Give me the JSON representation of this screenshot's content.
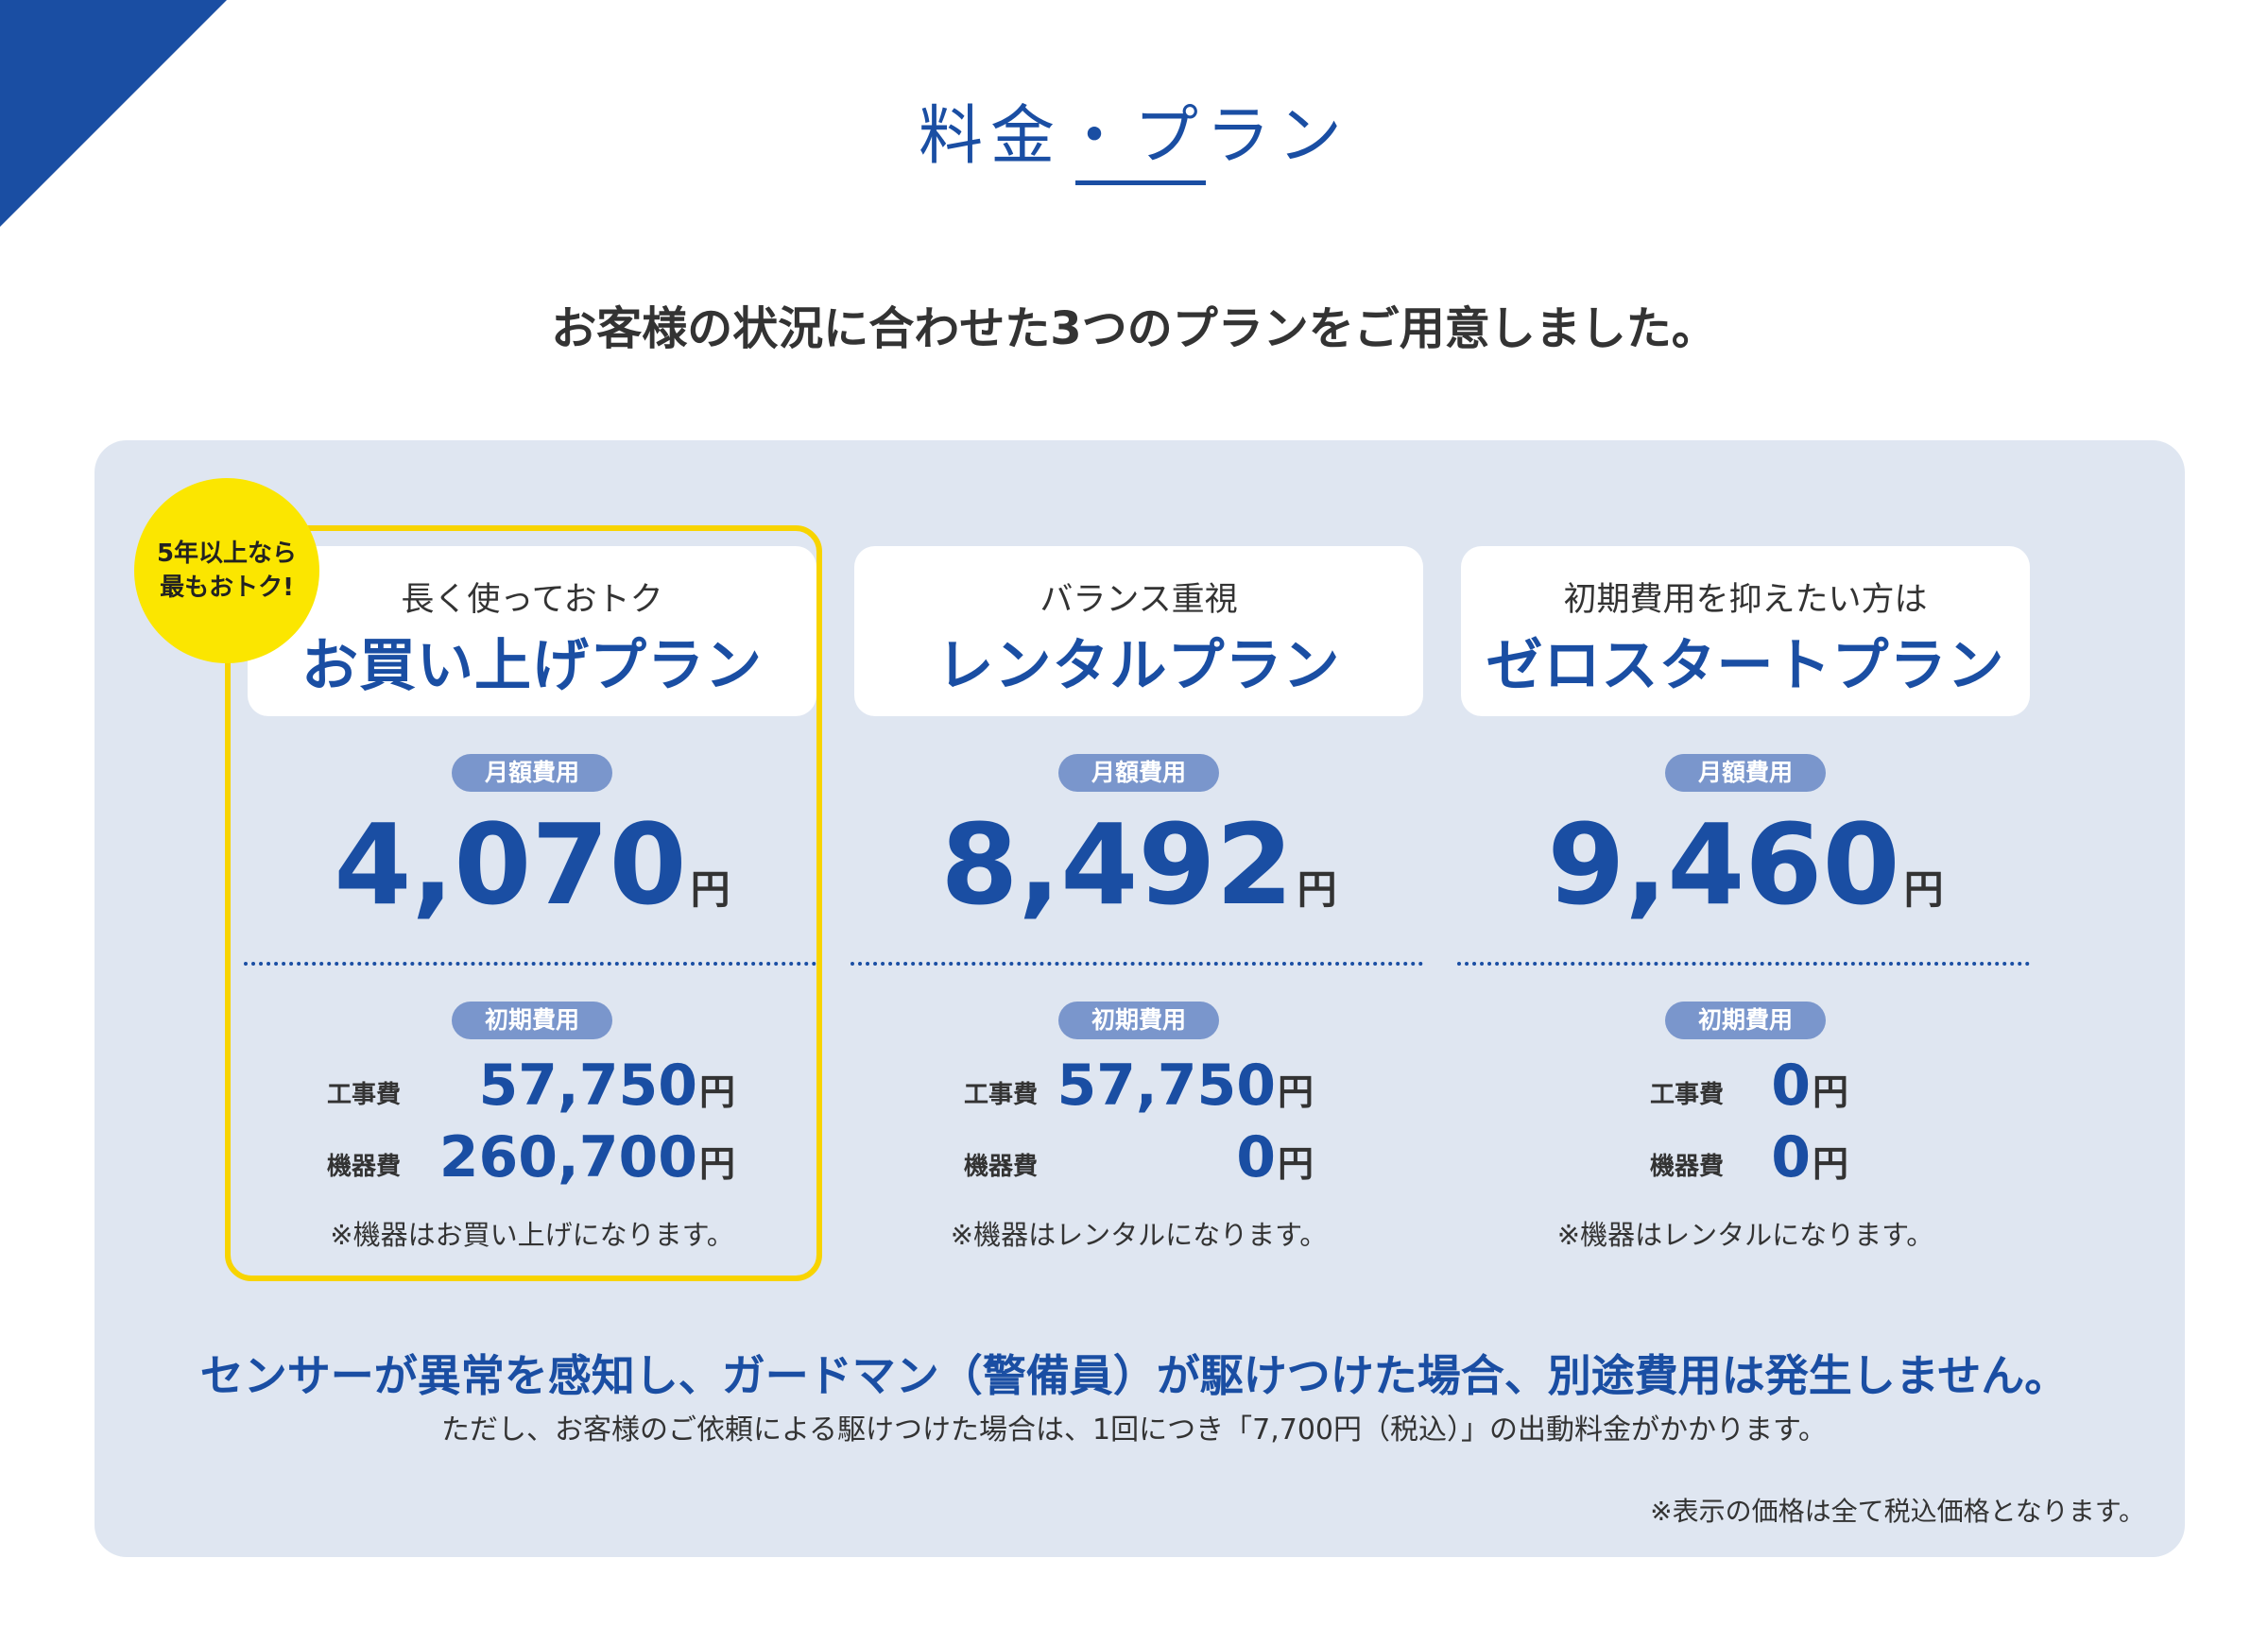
{
  "header": {
    "title": "料金・プラン",
    "subtitle": "お客様の状況に合わせた3つのプランをご用意しました。"
  },
  "badge": {
    "line1": "5年以上なら",
    "line2": "最もおトク!"
  },
  "plans": [
    {
      "lead": "長く使っておトク",
      "name": "お買い上げプラン",
      "monthly_label": "月額費用",
      "monthly_price": "4,070",
      "unit": "円",
      "initial_label": "初期費用",
      "construction_label": "工事費",
      "construction_fee": "57,750",
      "equipment_label": "機器費",
      "equipment_fee": "260,700",
      "note": "※機器はお買い上げになります。"
    },
    {
      "lead": "バランス重視",
      "name": "レンタルプラン",
      "monthly_label": "月額費用",
      "monthly_price": "8,492",
      "unit": "円",
      "initial_label": "初期費用",
      "construction_label": "工事費",
      "construction_fee": "57,750",
      "equipment_label": "機器費",
      "equipment_fee": "0",
      "note": "※機器はレンタルになります。"
    },
    {
      "lead": "初期費用を抑えたい方は",
      "name": "ゼロスタートプラン",
      "monthly_label": "月額費用",
      "monthly_price": "9,460",
      "unit": "円",
      "initial_label": "初期費用",
      "construction_label": "工事費",
      "construction_fee": "0",
      "equipment_label": "機器費",
      "equipment_fee": "0",
      "note": "※機器はレンタルになります。"
    }
  ],
  "footer": {
    "main": "センサーが異常を感知し、ガードマン（警備員）が駆けつけた場合、別途費用は発生しません。",
    "sub": "ただし、お客様のご依頼による駆けつけた場合は、1回につき「7,700円（税込）」の出動料金がかかります。",
    "tax_note": "※表示の価格は全て税込価格となります。"
  },
  "colors": {
    "brand_blue": "#1a4ea3",
    "panel_bg": "#dfe6f1",
    "pill_bg": "#7a96cc",
    "highlight_yellow": "#f8d400"
  }
}
